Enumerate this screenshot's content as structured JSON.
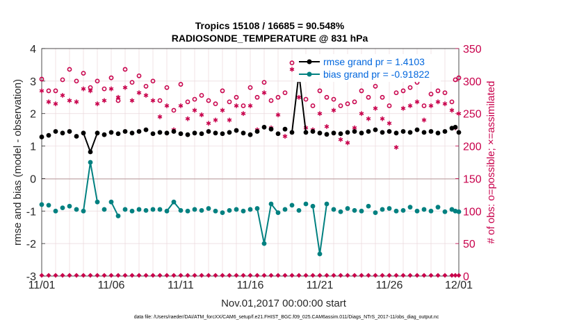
{
  "chart_data": {
    "type": "line",
    "title": "Tropics 15108 / 16685 = 90.548%",
    "subtitle": "RADIOSONDE_TEMPERATURE @ 831 hPa",
    "xlabel": "Nov.01,2017 00:00:00 start",
    "ylabel_left": "rmse and bias (model - observation)",
    "ylabel_right": "# of obs: o=possible; ×=assimilated",
    "x_tick_labels": [
      "11/01",
      "11/06",
      "11/11",
      "11/16",
      "11/21",
      "11/26",
      "12/01"
    ],
    "x_tick_days": [
      0,
      5,
      10,
      15,
      20,
      25,
      30
    ],
    "xlim": [
      0,
      30
    ],
    "ylim_left": [
      -3,
      4
    ],
    "ylim_right": [
      0,
      350
    ],
    "y_ticks_left": [
      -3,
      -2,
      -1,
      0,
      1,
      2,
      3,
      4
    ],
    "y_ticks_right": [
      0,
      50,
      100,
      150,
      200,
      250,
      300,
      350
    ],
    "grid": true,
    "legend_position": "top-right",
    "footnote": "data file: /Users/raeder/DAI/ATM_forcXX/CAM6_setup/f.e21.FHIST_BGC.f09_025.CAM6assim.011/Diags_NTrS_2017-11/obs_diag_output.nc",
    "series": [
      {
        "name": "rmse grand pr = 1.4103",
        "axis": "left",
        "color": "#000000",
        "marker": "filled-circle",
        "x": [
          0.0,
          0.5,
          1.0,
          1.5,
          2.0,
          2.5,
          3.0,
          3.5,
          4.0,
          4.5,
          5.0,
          5.5,
          6.0,
          6.5,
          7.0,
          7.5,
          8.0,
          8.5,
          9.0,
          9.5,
          10.0,
          10.5,
          11.0,
          11.5,
          12.0,
          12.5,
          13.0,
          13.5,
          14.0,
          14.5,
          15.0,
          15.5,
          16.0,
          16.5,
          17.0,
          17.5,
          18.0,
          18.5,
          19.0,
          19.5,
          20.0,
          20.5,
          21.0,
          21.5,
          22.0,
          22.5,
          23.0,
          23.5,
          24.0,
          24.5,
          25.0,
          25.5,
          26.0,
          26.5,
          27.0,
          27.5,
          28.0,
          28.5,
          29.0,
          29.5,
          29.75,
          30.0
        ],
        "values": [
          1.28,
          1.33,
          1.45,
          1.4,
          1.45,
          1.3,
          1.4,
          0.82,
          1.4,
          1.35,
          1.42,
          1.38,
          1.45,
          1.4,
          1.45,
          1.5,
          1.38,
          1.42,
          1.4,
          1.45,
          1.38,
          1.35,
          1.4,
          1.38,
          1.45,
          1.4,
          1.38,
          1.42,
          1.48,
          1.4,
          1.35,
          1.45,
          1.58,
          1.52,
          1.38,
          1.52,
          1.42,
          3.23,
          1.42,
          1.45,
          1.4,
          1.36,
          1.4,
          1.38,
          1.42,
          1.45,
          1.4,
          1.45,
          1.5,
          1.42,
          1.45,
          1.4,
          1.45,
          1.42,
          1.5,
          1.42,
          1.45,
          1.4,
          1.45,
          1.55,
          1.58,
          1.42
        ]
      },
      {
        "name": "bias grand pr = -0.91822",
        "axis": "left",
        "color": "#008080",
        "marker": "filled-circle",
        "x": [
          0.0,
          0.5,
          1.0,
          1.5,
          2.0,
          2.5,
          3.0,
          3.5,
          4.0,
          4.5,
          5.0,
          5.5,
          6.0,
          6.5,
          7.0,
          7.5,
          8.0,
          8.5,
          9.0,
          9.5,
          10.0,
          10.5,
          11.0,
          11.5,
          12.0,
          12.5,
          13.0,
          13.5,
          14.0,
          14.5,
          15.0,
          15.5,
          16.0,
          16.5,
          17.0,
          17.5,
          18.0,
          18.5,
          19.0,
          19.5,
          20.0,
          20.5,
          21.0,
          21.5,
          22.0,
          22.5,
          23.0,
          23.5,
          24.0,
          24.5,
          25.0,
          25.5,
          26.0,
          26.5,
          27.0,
          27.5,
          28.0,
          28.5,
          29.0,
          29.5,
          29.75,
          30.0
        ],
        "values": [
          -0.8,
          -0.82,
          -1.0,
          -0.9,
          -0.85,
          -0.95,
          -1.0,
          0.5,
          -0.72,
          -0.95,
          -0.72,
          -1.15,
          -0.95,
          -1.0,
          -0.95,
          -0.98,
          -0.95,
          -0.95,
          -1.0,
          -0.72,
          -0.98,
          -1.0,
          -0.95,
          -0.98,
          -0.92,
          -1.0,
          -1.05,
          -0.98,
          -0.95,
          -1.0,
          -0.95,
          -0.92,
          -2.0,
          -0.78,
          -1.05,
          -0.95,
          -0.82,
          -0.98,
          -0.78,
          -0.85,
          -2.32,
          -0.78,
          -0.95,
          -1.02,
          -0.92,
          -0.98,
          -1.0,
          -0.85,
          -1.05,
          -0.95,
          -0.92,
          -1.0,
          -0.98,
          -0.88,
          -1.0,
          -0.95,
          -1.0,
          -0.88,
          -1.02,
          -0.95,
          -1.0,
          -1.02
        ]
      },
      {
        "name": "possible obs",
        "axis": "right",
        "color": "#c8004b",
        "marker": "open-circle",
        "x": [
          0.0,
          0.5,
          1.0,
          1.5,
          2.0,
          2.5,
          3.0,
          3.5,
          4.0,
          4.5,
          5.0,
          5.5,
          6.0,
          6.5,
          7.0,
          7.5,
          8.0,
          8.5,
          9.0,
          9.5,
          10.0,
          10.5,
          11.0,
          11.5,
          12.0,
          12.5,
          13.0,
          13.5,
          14.0,
          14.5,
          15.0,
          15.5,
          16.0,
          16.5,
          17.0,
          17.5,
          18.0,
          18.5,
          19.0,
          19.5,
          20.0,
          20.5,
          21.0,
          21.5,
          22.0,
          22.5,
          23.0,
          23.5,
          24.0,
          24.5,
          25.0,
          25.5,
          26.0,
          26.5,
          27.0,
          27.5,
          28.0,
          28.5,
          29.0,
          29.5,
          29.75,
          30.0
        ],
        "values": [
          303,
          285,
          285,
          302,
          318,
          300,
          312,
          290,
          300,
          288,
          305,
          270,
          318,
          298,
          308,
          292,
          300,
          270,
          290,
          255,
          295,
          268,
          272,
          278,
          270,
          265,
          285,
          268,
          275,
          262,
          290,
          275,
          298,
          270,
          275,
          282,
          328,
          302,
          272,
          262,
          285,
          275,
          272,
          262,
          265,
          268,
          285,
          275,
          292,
          275,
          262,
          282,
          285,
          290,
          298,
          262,
          280,
          285,
          282,
          268,
          302,
          305
        ]
      },
      {
        "name": "assimilated obs",
        "axis": "right",
        "color": "#c8004b",
        "marker": "star",
        "x": [
          0.0,
          0.5,
          1.0,
          1.5,
          2.0,
          2.5,
          3.0,
          3.5,
          4.0,
          4.5,
          5.0,
          5.5,
          6.0,
          6.5,
          7.0,
          7.5,
          8.0,
          8.5,
          9.0,
          9.5,
          10.0,
          10.5,
          11.0,
          11.5,
          12.0,
          12.5,
          13.0,
          13.5,
          14.0,
          14.5,
          15.0,
          15.5,
          16.0,
          16.5,
          17.0,
          17.5,
          18.0,
          18.5,
          19.0,
          19.5,
          20.0,
          20.5,
          21.0,
          21.5,
          22.0,
          22.5,
          23.0,
          23.5,
          24.0,
          24.5,
          25.0,
          25.5,
          26.0,
          26.5,
          27.0,
          27.5,
          28.0,
          28.5,
          29.0,
          29.5,
          29.75,
          30.0
        ],
        "values": [
          285,
          268,
          265,
          278,
          270,
          268,
          288,
          285,
          265,
          270,
          288,
          275,
          290,
          270,
          282,
          278,
          270,
          245,
          262,
          225,
          262,
          242,
          255,
          248,
          235,
          240,
          255,
          240,
          262,
          250,
          262,
          225,
          282,
          228,
          248,
          215,
          318,
          275,
          228,
          225,
          250,
          230,
          255,
          210,
          205,
          228,
          250,
          242,
          258,
          242,
          235,
          198,
          258,
          262,
          268,
          240,
          262,
          268,
          265,
          255,
          228,
          250
        ]
      }
    ]
  }
}
